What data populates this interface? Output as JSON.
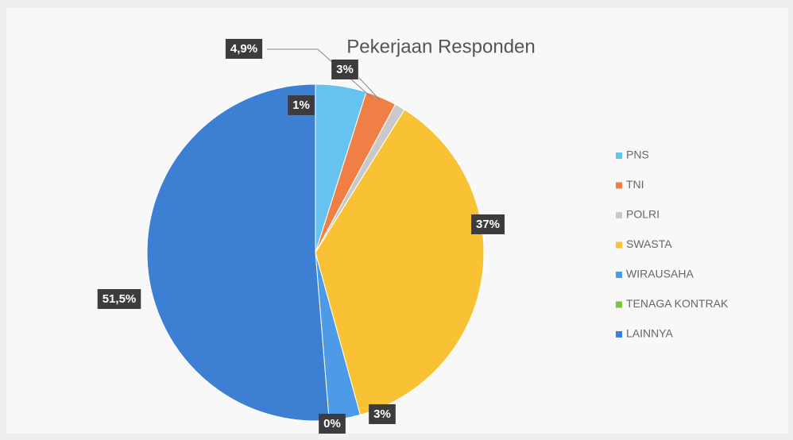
{
  "chart_data": {
    "type": "pie",
    "title": "Pekerjaan Responden",
    "categories": [
      "PNS",
      "TNI",
      "POLRI",
      "SWASTA",
      "WIRAUSAHA",
      "TENAGA KONTRAK",
      "LAINNYA"
    ],
    "values": [
      4.9,
      3,
      1,
      37,
      3,
      0,
      51.5
    ],
    "value_labels": [
      "4,9%",
      "3%",
      "1%",
      "37%",
      "3%",
      "0%",
      "51,5%"
    ],
    "colors": [
      "#66c2ee",
      "#ef7f45",
      "#c9c9c9",
      "#f8c234",
      "#4d9ae6",
      "#7cc242",
      "#3d7fd3"
    ],
    "legend": "right"
  }
}
